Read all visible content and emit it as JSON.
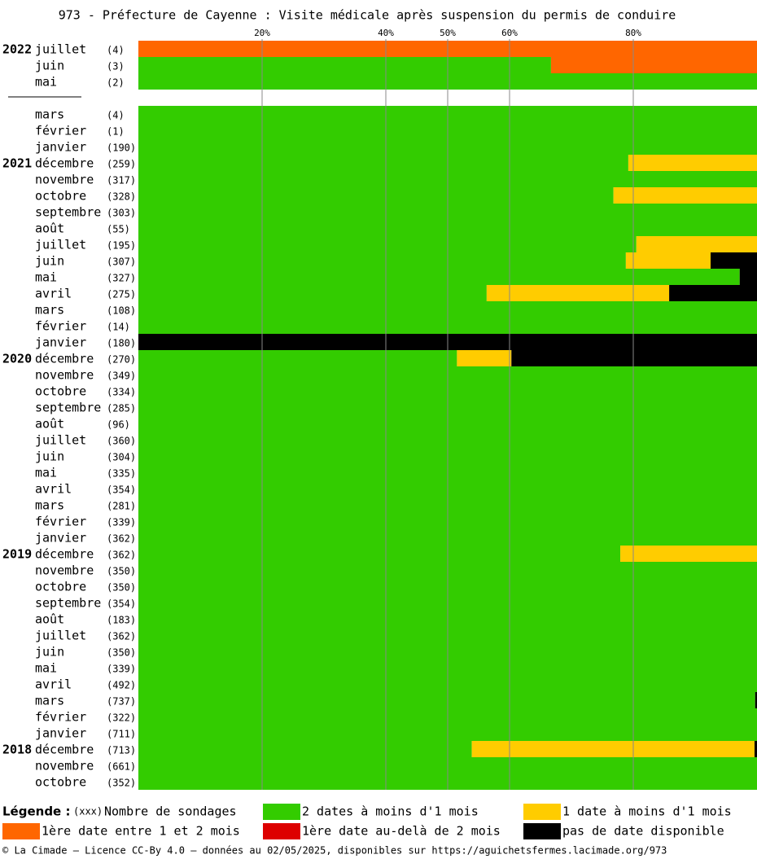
{
  "chart_data": {
    "type": "stacked_barh",
    "title": "973 - Préfecture de Cayenne : Visite médicale après suspension du permis de conduire",
    "categories": [
      "juillet",
      "juin",
      "mai",
      "mars",
      "février",
      "janvier",
      "décembre",
      "novembre",
      "octobre",
      "septembre",
      "août",
      "juillet",
      "juin",
      "mai",
      "avril",
      "mars",
      "février",
      "janvier",
      "décembre",
      "novembre",
      "octobre",
      "septembre",
      "août",
      "juillet",
      "juin",
      "mai",
      "avril",
      "mars",
      "février",
      "janvier",
      "décembre",
      "novembre",
      "octobre",
      "septembre",
      "août",
      "juillet",
      "juin",
      "mai",
      "avril",
      "mars",
      "février",
      "janvier",
      "décembre",
      "novembre",
      "octobre"
    ],
    "years": [
      "2022",
      null,
      null,
      null,
      null,
      null,
      "2021",
      null,
      null,
      null,
      null,
      null,
      null,
      null,
      null,
      null,
      null,
      null,
      "2020",
      null,
      null,
      null,
      null,
      null,
      null,
      null,
      null,
      null,
      null,
      null,
      "2019",
      null,
      null,
      null,
      null,
      null,
      null,
      null,
      null,
      null,
      null,
      null,
      "2018",
      null,
      null
    ],
    "count_labels": [
      "(4)",
      "(3)",
      "(2)",
      "(4)",
      "(1)",
      "(190)",
      "(259)",
      "(317)",
      "(328)",
      "(303)",
      "(55)",
      "(195)",
      "(307)",
      "(327)",
      "(275)",
      "(108)",
      "(14)",
      "(180)",
      "(270)",
      "(349)",
      "(334)",
      "(285)",
      "(96)",
      "(360)",
      "(304)",
      "(335)",
      "(354)",
      "(281)",
      "(339)",
      "(362)",
      "(362)",
      "(350)",
      "(350)",
      "(354)",
      "(183)",
      "(362)",
      "(350)",
      "(339)",
      "(492)",
      "(737)",
      "(322)",
      "(711)",
      "(713)",
      "(661)",
      "(352)"
    ],
    "series": [
      {
        "name": "2 dates à moins d'1 mois",
        "color": "#33cc00",
        "values": [
          0,
          66.7,
          100,
          100,
          100,
          100,
          79.2,
          100,
          76.8,
          100,
          100,
          80.5,
          78.8,
          97.2,
          56.3,
          100,
          100,
          0,
          51.5,
          100,
          100,
          100,
          100,
          100,
          100,
          100,
          100,
          100,
          100,
          100,
          77.9,
          100,
          100,
          100,
          100,
          100,
          100,
          100,
          100,
          99.7,
          100,
          100,
          53.9,
          100,
          100
        ]
      },
      {
        "name": "1 date à moins d'1 mois",
        "color": "#ffcc00",
        "values": [
          0,
          0,
          0,
          0,
          0,
          0,
          20.8,
          0,
          23.2,
          0,
          0,
          19.5,
          13.7,
          0,
          29.5,
          0,
          0,
          0,
          8.8,
          0,
          0,
          0,
          0,
          0,
          0,
          0,
          0,
          0,
          0,
          0,
          22.1,
          0,
          0,
          0,
          0,
          0,
          0,
          0,
          0,
          0,
          0,
          0,
          45.7,
          0,
          0
        ]
      },
      {
        "name": "1ère date entre 1 et 2 mois",
        "color": "#ff6600",
        "values": [
          100,
          33.3,
          0,
          0,
          0,
          0,
          0,
          0,
          0,
          0,
          0,
          0,
          0,
          0,
          0,
          0,
          0,
          0,
          0,
          0,
          0,
          0,
          0,
          0,
          0,
          0,
          0,
          0,
          0,
          0,
          0,
          0,
          0,
          0,
          0,
          0,
          0,
          0,
          0,
          0,
          0,
          0,
          0,
          0,
          0
        ]
      },
      {
        "name": "1ère date au-delà de 2 mois",
        "color": "#dd0000",
        "values": [
          0,
          0,
          0,
          0,
          0,
          0,
          0,
          0,
          0,
          0,
          0,
          0,
          0,
          0,
          0,
          0,
          0,
          0,
          0,
          0,
          0,
          0,
          0,
          0,
          0,
          0,
          0,
          0,
          0,
          0,
          0,
          0,
          0,
          0,
          0,
          0,
          0,
          0,
          0,
          0,
          0,
          0,
          0,
          0,
          0
        ]
      },
      {
        "name": "pas de date disponible",
        "color": "#000000",
        "values": [
          0,
          0,
          0,
          0,
          0,
          0,
          0,
          0,
          0,
          0,
          0,
          0,
          7.5,
          2.8,
          14.2,
          0,
          0,
          100,
          39.7,
          0,
          0,
          0,
          0,
          0,
          0,
          0,
          0,
          0,
          0,
          0,
          0,
          0,
          0,
          0,
          0,
          0,
          0,
          0,
          0,
          0.3,
          0,
          0,
          0.4,
          0,
          0
        ]
      }
    ],
    "xlim": [
      0,
      100
    ],
    "xticks": [
      {
        "value": 20,
        "label": "20%"
      },
      {
        "value": 40,
        "label": "40%"
      },
      {
        "value": 50,
        "label": "50%"
      },
      {
        "value": 60,
        "label": "60%"
      },
      {
        "value": 80,
        "label": "80%"
      }
    ],
    "grid": true,
    "legend_title": "Légende :",
    "legend_count_sample": "(xxx)",
    "legend_count_text": "Nombre de sondages",
    "footer": "© La Cimade — Licence CC-By 4.0 — données au 02/05/2025, disponibles sur https://aguichetsfermes.lacimade.org/973"
  }
}
